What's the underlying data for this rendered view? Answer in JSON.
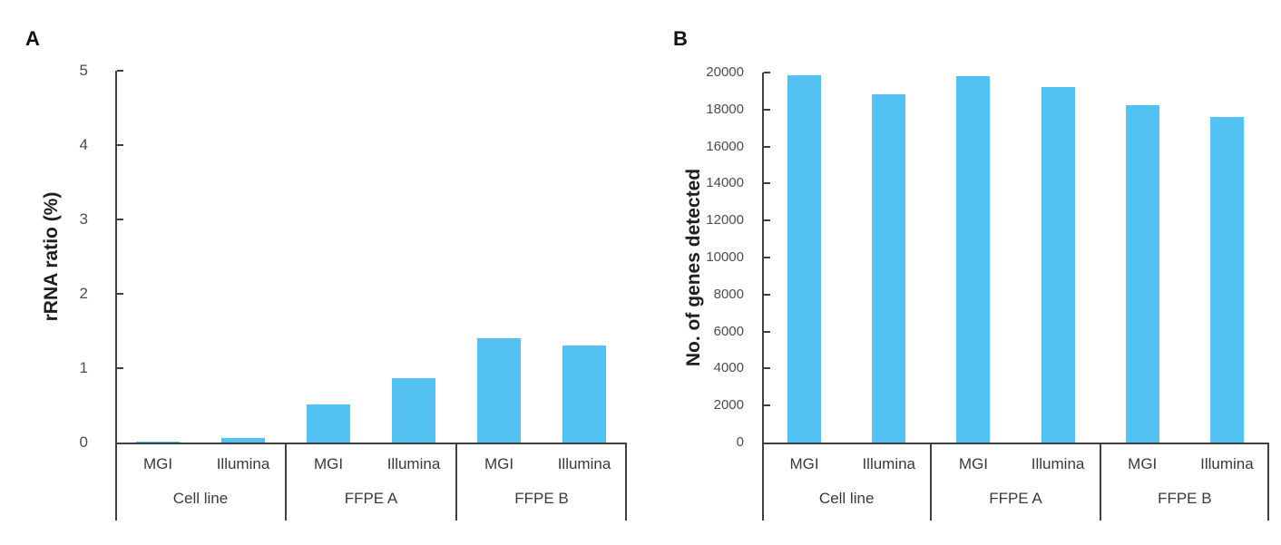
{
  "figure": {
    "panels": [
      {
        "label": "A"
      },
      {
        "label": "B"
      }
    ]
  },
  "colors": {
    "bar": "#53C1F1",
    "axis": "#404040",
    "text": "#3A3A3A"
  },
  "chart_data": [
    {
      "type": "bar",
      "title": "",
      "xlabel": "",
      "ylabel": "rRNA ratio (%)",
      "ylim": [
        0,
        5
      ],
      "ytick_step": 1,
      "grid": false,
      "legend": "none",
      "groups": [
        "Cell line",
        "FFPE A",
        "FFPE B"
      ],
      "categories": [
        "MGI",
        "Illumina",
        "MGI",
        "Illumina",
        "MGI",
        "Illumina"
      ],
      "values": [
        0.01,
        0.06,
        0.51,
        0.87,
        1.4,
        1.3
      ]
    },
    {
      "type": "bar",
      "title": "",
      "xlabel": "",
      "ylabel": "No. of genes detected",
      "ylim": [
        0,
        20000
      ],
      "ytick_step": 2000,
      "grid": false,
      "legend": "none",
      "groups": [
        "Cell line",
        "FFPE A",
        "FFPE B"
      ],
      "categories": [
        "MGI",
        "Illumina",
        "MGI",
        "Illumina",
        "MGI",
        "Illumina"
      ],
      "values": [
        19850,
        18800,
        19800,
        19200,
        18250,
        17600
      ]
    }
  ]
}
